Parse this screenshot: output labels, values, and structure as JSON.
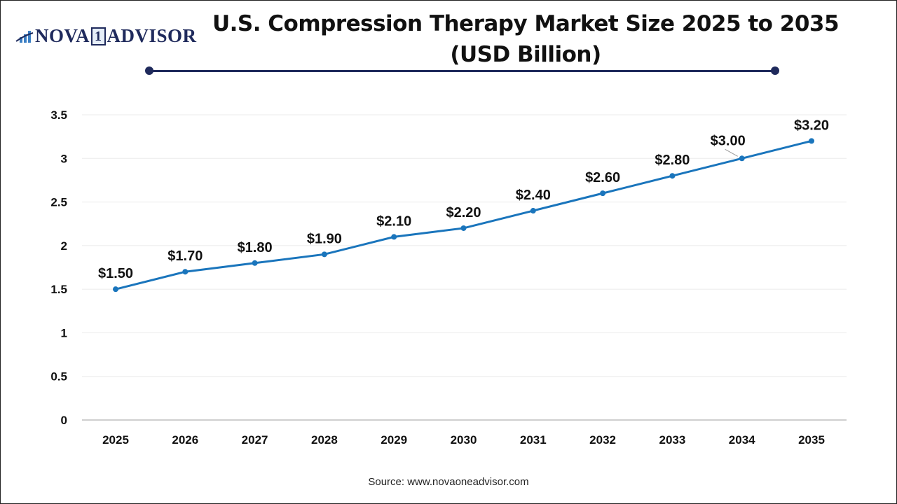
{
  "logo": {
    "text_left": "NOVA",
    "text_mid": "1",
    "text_right": "ADVISOR"
  },
  "title_line1": "U.S. Compression Therapy Market Size 2025 to 2035",
  "title_line2": "(USD Billion)",
  "source": "Source: www.novaoneadvisor.com",
  "colors": {
    "line": "#1a75bc",
    "rule": "#1f2a5c",
    "grid": "#ebebeb"
  },
  "chart_data": {
    "type": "line",
    "title": "U.S. Compression Therapy Market Size 2025 to 2035 (USD Billion)",
    "categories": [
      "2025",
      "2026",
      "2027",
      "2028",
      "2029",
      "2030",
      "2031",
      "2032",
      "2033",
      "2034",
      "2035"
    ],
    "values": [
      1.5,
      1.7,
      1.8,
      1.9,
      2.1,
      2.2,
      2.4,
      2.6,
      2.8,
      3.0,
      3.2
    ],
    "data_labels": [
      "$1.50",
      "$1.70",
      "$1.80",
      "$1.90",
      "$2.10",
      "$2.20",
      "$2.40",
      "$2.60",
      "$2.80",
      "$3.00",
      "$3.20"
    ],
    "yticks": [
      "0",
      "0.5",
      "1",
      "1.5",
      "2",
      "2.5",
      "3",
      "3.5"
    ],
    "ylim": [
      0,
      3.5
    ],
    "grid": true,
    "legend": "none"
  }
}
